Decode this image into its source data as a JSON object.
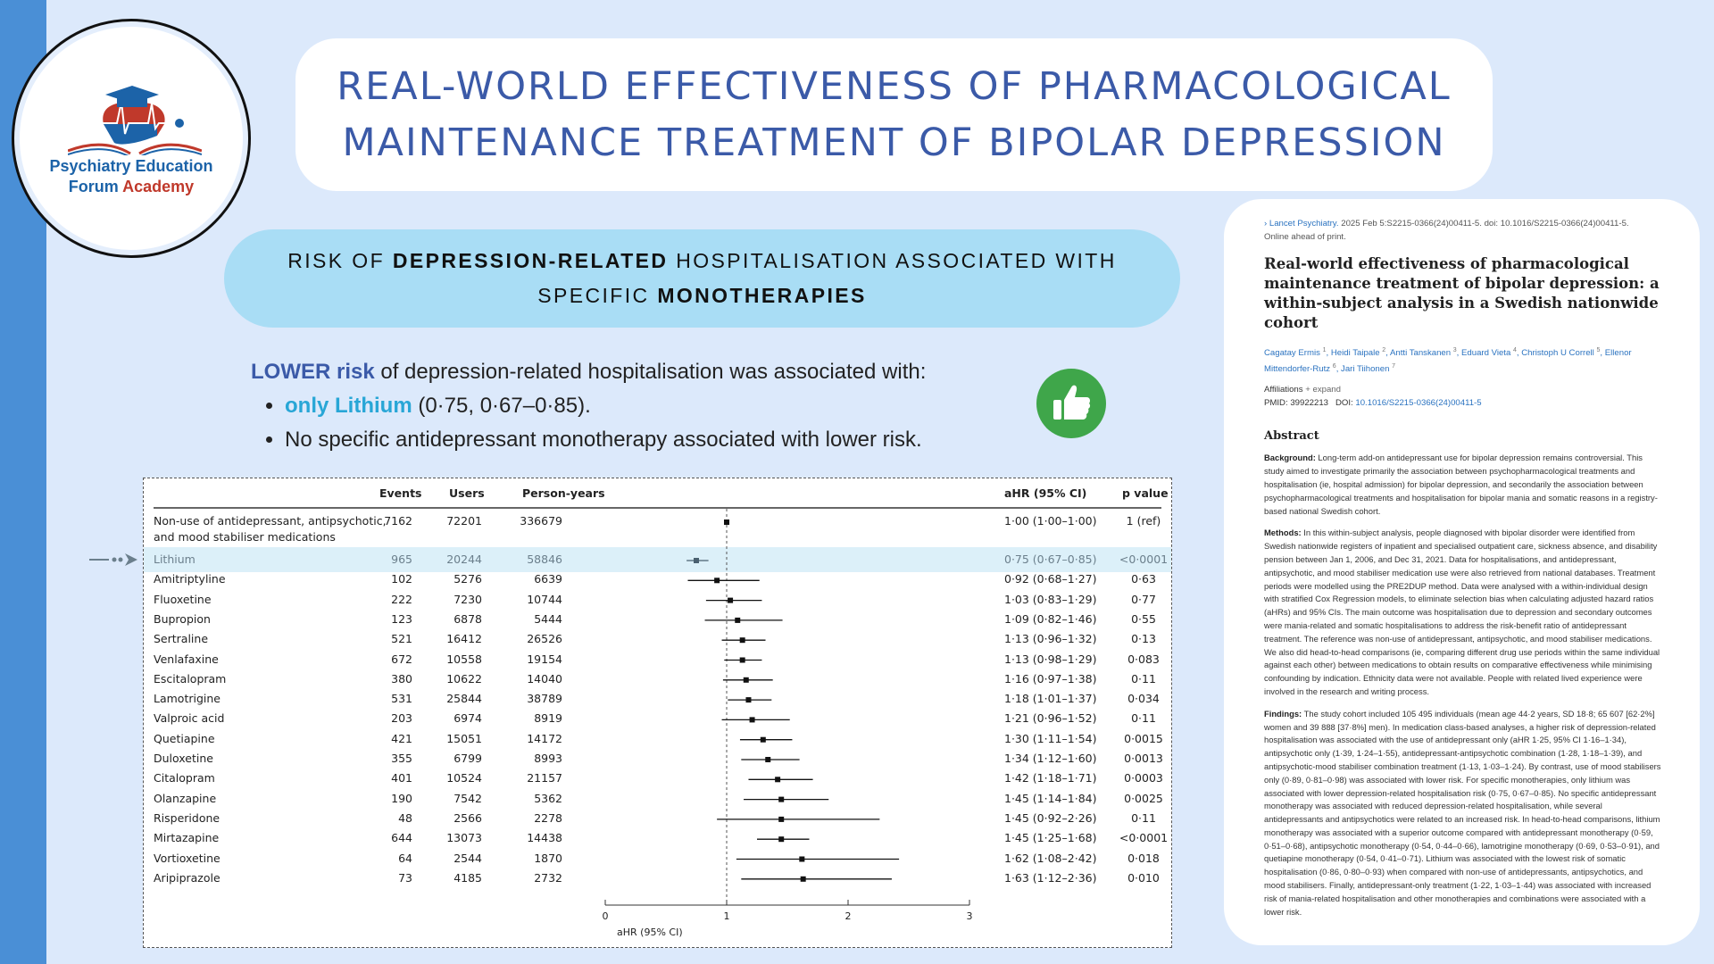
{
  "logo": {
    "line1": "Psychiatry Education",
    "line2a": "Forum",
    "line2b": "Academy"
  },
  "title": {
    "line1": "REAL-WORLD EFFECTIVENESS OF PHARMACOLOGICAL",
    "line2": "MAINTENANCE TREATMENT OF BIPOLAR DEPRESSION"
  },
  "subtitle": {
    "a": "RISK OF ",
    "b": "DEPRESSION-RELATED",
    "c": " HOSPITALISATION ASSOCIATED WITH",
    "d": "SPECIFIC ",
    "e": "MONOTHERAPIES"
  },
  "key": {
    "lower": "LOWER risk",
    "intro": " of depression-related hospitalisation was associated with:",
    "b1_hl": "only Lithium",
    "b1_rest": " (0·75, 0·67–0·85).",
    "b2": "No specific antidepressant monotherapy associated with lower risk."
  },
  "icons": {
    "thumb": "thumbs-up-icon",
    "arrow": "arrow-right-icon"
  },
  "colors": {
    "title": "#3b5aa8",
    "pill": "#a9ddf5",
    "highlight": "#dcf0f9",
    "thumb": "#3fa64a",
    "sidebar": "#4a8fd6"
  },
  "chart_data": {
    "type": "table",
    "headers": {
      "events": "Events",
      "users": "Users",
      "py": "Person-years",
      "ahr": "aHR (95% CI)",
      "p": "p value"
    },
    "xlabel": "aHR (95% CI)",
    "xlim": [
      0,
      3
    ],
    "xticks": [
      "0",
      "1",
      "2",
      "3"
    ],
    "reference_line": 1,
    "rows": [
      {
        "name": "Non-use of antidepressant, antipsychotic,",
        "name2": "and mood stabiliser medications",
        "events": "7162",
        "users": "72201",
        "py": "336679",
        "ahr_text": "1·00 (1·00–1·00)",
        "p": "1 (ref)",
        "hr": 1.0,
        "lo": 1.0,
        "hi": 1.0
      },
      {
        "name": "Lithium",
        "events": "965",
        "users": "20244",
        "py": "58846",
        "ahr_text": "0·75 (0·67–0·85)",
        "p": "<0·0001",
        "hr": 0.75,
        "lo": 0.67,
        "hi": 0.85,
        "highlight": true
      },
      {
        "name": "Amitriptyline",
        "events": "102",
        "users": "5276",
        "py": "6639",
        "ahr_text": "0·92 (0·68–1·27)",
        "p": "0·63",
        "hr": 0.92,
        "lo": 0.68,
        "hi": 1.27
      },
      {
        "name": "Fluoxetine",
        "events": "222",
        "users": "7230",
        "py": "10744",
        "ahr_text": "1·03 (0·83–1·29)",
        "p": "0·77",
        "hr": 1.03,
        "lo": 0.83,
        "hi": 1.29
      },
      {
        "name": "Bupropion",
        "events": "123",
        "users": "6878",
        "py": "5444",
        "ahr_text": "1·09 (0·82–1·46)",
        "p": "0·55",
        "hr": 1.09,
        "lo": 0.82,
        "hi": 1.46
      },
      {
        "name": "Sertraline",
        "events": "521",
        "users": "16412",
        "py": "26526",
        "ahr_text": "1·13 (0·96–1·32)",
        "p": "0·13",
        "hr": 1.13,
        "lo": 0.96,
        "hi": 1.32
      },
      {
        "name": "Venlafaxine",
        "events": "672",
        "users": "10558",
        "py": "19154",
        "ahr_text": "1·13 (0·98–1·29)",
        "p": "0·083",
        "hr": 1.13,
        "lo": 0.98,
        "hi": 1.29
      },
      {
        "name": "Escitalopram",
        "events": "380",
        "users": "10622",
        "py": "14040",
        "ahr_text": "1·16 (0·97–1·38)",
        "p": "0·11",
        "hr": 1.16,
        "lo": 0.97,
        "hi": 1.38
      },
      {
        "name": "Lamotrigine",
        "events": "531",
        "users": "25844",
        "py": "38789",
        "ahr_text": "1·18 (1·01–1·37)",
        "p": "0·034",
        "hr": 1.18,
        "lo": 1.01,
        "hi": 1.37
      },
      {
        "name": "Valproic acid",
        "events": "203",
        "users": "6974",
        "py": "8919",
        "ahr_text": "1·21 (0·96–1·52)",
        "p": "0·11",
        "hr": 1.21,
        "lo": 0.96,
        "hi": 1.52
      },
      {
        "name": "Quetiapine",
        "events": "421",
        "users": "15051",
        "py": "14172",
        "ahr_text": "1·30 (1·11–1·54)",
        "p": "0·0015",
        "hr": 1.3,
        "lo": 1.11,
        "hi": 1.54
      },
      {
        "name": "Duloxetine",
        "events": "355",
        "users": "6799",
        "py": "8993",
        "ahr_text": "1·34 (1·12–1·60)",
        "p": "0·0013",
        "hr": 1.34,
        "lo": 1.12,
        "hi": 1.6
      },
      {
        "name": "Citalopram",
        "events": "401",
        "users": "10524",
        "py": "21157",
        "ahr_text": "1·42 (1·18–1·71)",
        "p": "0·0003",
        "hr": 1.42,
        "lo": 1.18,
        "hi": 1.71
      },
      {
        "name": "Olanzapine",
        "events": "190",
        "users": "7542",
        "py": "5362",
        "ahr_text": "1·45 (1·14–1·84)",
        "p": "0·0025",
        "hr": 1.45,
        "lo": 1.14,
        "hi": 1.84
      },
      {
        "name": "Risperidone",
        "events": "48",
        "users": "2566",
        "py": "2278",
        "ahr_text": "1·45 (0·92–2·26)",
        "p": "0·11",
        "hr": 1.45,
        "lo": 0.92,
        "hi": 2.26
      },
      {
        "name": "Mirtazapine",
        "events": "644",
        "users": "13073",
        "py": "14438",
        "ahr_text": "1·45 (1·25–1·68)",
        "p": "<0·0001",
        "hr": 1.45,
        "lo": 1.25,
        "hi": 1.68
      },
      {
        "name": "Vortioxetine",
        "events": "64",
        "users": "2544",
        "py": "1870",
        "ahr_text": "1·62 (1·08–2·42)",
        "p": "0·018",
        "hr": 1.62,
        "lo": 1.08,
        "hi": 2.42
      },
      {
        "name": "Aripiprazole",
        "events": "73",
        "users": "4185",
        "py": "2732",
        "ahr_text": "1·63 (1·12–2·36)",
        "p": "0·010",
        "hr": 1.63,
        "lo": 1.12,
        "hi": 2.36
      }
    ]
  },
  "article": {
    "journal": "Lancet Psychiatry.",
    "citation": " 2025 Feb 5:S2215-0366(24)00411-5. doi: 10.1016/S2215-0366(24)00411-5.",
    "online": "Online ahead of print.",
    "title": "Real-world effectiveness of pharmacological maintenance treatment of bipolar depression: a within-subject analysis in a Swedish nationwide cohort",
    "authors": [
      {
        "n": "Cagatay Ermis",
        "s": "1"
      },
      {
        "n": "Heidi Taipale",
        "s": "2"
      },
      {
        "n": "Antti Tanskanen",
        "s": "3"
      },
      {
        "n": "Eduard Vieta",
        "s": "4"
      },
      {
        "n": "Christoph U Correll",
        "s": "5"
      },
      {
        "n": "Ellenor Mittendorfer-Rutz",
        "s": "6"
      },
      {
        "n": "Jari Tiihonen",
        "s": "7"
      }
    ],
    "affiliations": "Affiliations",
    "expand": "+ expand",
    "pmid": "PMID: 39922213",
    "doi_label": "DOI: ",
    "doi": "10.1016/S2215-0366(24)00411-5",
    "abstract_heading": "Abstract",
    "background_label": "Background:",
    "background": " Long-term add-on antidepressant use for bipolar depression remains controversial. This study aimed to investigate primarily the association between psychopharmacological treatments and hospitalisation (ie, hospital admission) for bipolar depression, and secondarily the association between psychopharmacological treatments and hospitalisation for bipolar mania and somatic reasons in a registry-based national Swedish cohort.",
    "methods_label": "Methods:",
    "methods": " In this within-subject analysis, people diagnosed with bipolar disorder were identified from Swedish nationwide registers of inpatient and specialised outpatient care, sickness absence, and disability pension between Jan 1, 2006, and Dec 31, 2021. Data for hospitalisations, and antidepressant, antipsychotic, and mood stabiliser medication use were also retrieved from national databases. Treatment periods were modelled using the PRE2DUP method. Data were analysed with a within-individual design with stratified Cox Regression models, to eliminate selection bias when calculating adjusted hazard ratios (aHRs) and 95% CIs. The main outcome was hospitalisation due to depression and secondary outcomes were mania-related and somatic hospitalisations to address the risk-benefit ratio of antidepressant treatment. The reference was non-use of antidepressant, antipsychotic, and mood stabiliser medications. We also did head-to-head comparisons (ie, comparing different drug use periods within the same individual against each other) between medications to obtain results on comparative effectiveness while minimising confounding by indication. Ethnicity data were not available. People with related lived experience were involved in the research and writing process.",
    "findings_label": "Findings:",
    "findings": " The study cohort included 105 495 individuals (mean age 44·2 years, SD 18·8; 65 607 [62·2%] women and 39 888 [37·8%] men). In medication class-based analyses, a higher risk of depression-related hospitalisation was associated with the use of antidepressant only (aHR 1·25, 95% CI 1·16–1·34), antipsychotic only (1·39, 1·24–1·55), antidepressant-antipsychotic combination (1·28, 1·18–1·39), and antipsychotic-mood stabiliser combination treatment (1·13, 1·03–1·24). By contrast, use of mood stabilisers only (0·89, 0·81–0·98) was associated with lower risk. For specific monotherapies, only lithium was associated with lower depression-related hospitalisation risk (0·75, 0·67–0·85). No specific antidepressant monotherapy was associated with reduced depression-related hospitalisation, while several antidepressants and antipsychotics were related to an increased risk. In head-to-head comparisons, lithium monotherapy was associated with a superior outcome compared with antidepressant monotherapy (0·59, 0·51–0·68), antipsychotic monotherapy (0·54, 0·44–0·66), lamotrigine monotherapy (0·69, 0·53–0·91), and quetiapine monotherapy (0·54, 0·41–0·71). Lithium was associated with the lowest risk of somatic hospitalisation (0·86, 0·80–0·93) when compared with non-use of antidepressants, antipsychotics, and mood stabilisers. Finally, antidepressant-only treatment (1·22, 1·03–1·44) was associated with increased risk of mania-related hospitalisation and other monotherapies and combinations were associated with a lower risk."
  }
}
